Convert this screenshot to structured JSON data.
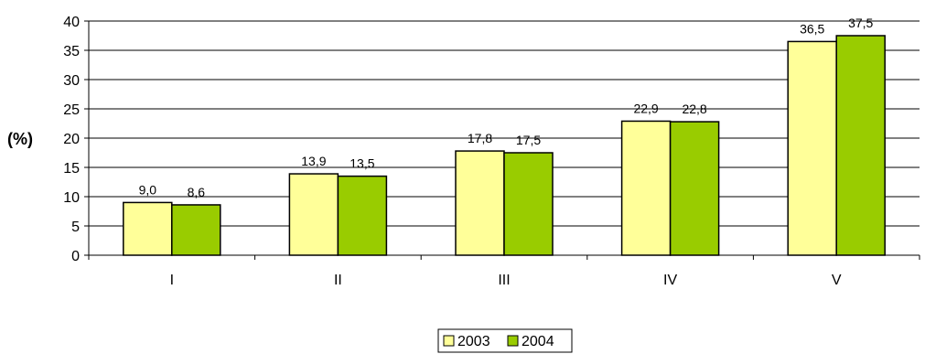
{
  "chart_data": {
    "type": "bar",
    "categories": [
      "I",
      "II",
      "III",
      "IV",
      "V"
    ],
    "series": [
      {
        "name": "2003",
        "values": [
          9.0,
          13.9,
          17.8,
          22.9,
          36.5
        ],
        "labels": [
          "9,0",
          "13,9",
          "17,8",
          "22,9",
          "36,5"
        ],
        "color": "#ffff99"
      },
      {
        "name": "2004",
        "values": [
          8.6,
          13.5,
          17.5,
          22.8,
          37.5
        ],
        "labels": [
          "8,6",
          "13,5",
          "17,5",
          "22,8",
          "37,5"
        ],
        "color": "#99cc00"
      }
    ],
    "title": "",
    "xlabel": "",
    "ylabel": "(%)",
    "ylim": [
      0,
      40
    ],
    "yticks": [
      0,
      5,
      10,
      15,
      20,
      25,
      30,
      35,
      40
    ],
    "grid": true,
    "legend_position": "bottom"
  }
}
